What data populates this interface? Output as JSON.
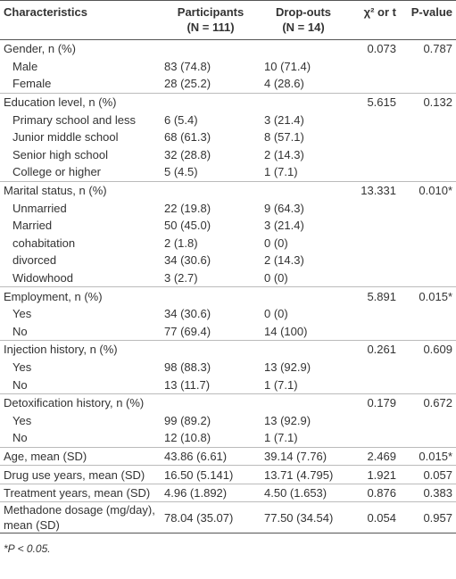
{
  "table": {
    "header": {
      "characteristics": "Characteristics",
      "participants": [
        "Participants",
        "(N = 111)"
      ],
      "dropouts": [
        "Drop-outs",
        "(N = 14)"
      ],
      "stat": "χ² or t",
      "p": "P-value"
    },
    "groups": [
      {
        "label": "Gender, n (%)",
        "stat": "0.073",
        "p": "0.787",
        "items": [
          {
            "label": "Male",
            "participants": "83 (74.8)",
            "dropouts": "10 (71.4)"
          },
          {
            "label": "Female",
            "participants": "28 (25.2)",
            "dropouts": "4 (28.6)"
          }
        ]
      },
      {
        "label": "Education level, n (%)",
        "stat": "5.615",
        "p": "0.132",
        "items": [
          {
            "label": "Primary school and less",
            "participants": "6 (5.4)",
            "dropouts": "3 (21.4)"
          },
          {
            "label": "Junior middle school",
            "participants": "68 (61.3)",
            "dropouts": "8 (57.1)"
          },
          {
            "label": "Senior high school",
            "participants": "32 (28.8)",
            "dropouts": "2 (14.3)"
          },
          {
            "label": "College or higher",
            "participants": "5 (4.5)",
            "dropouts": "1 (7.1)"
          }
        ]
      },
      {
        "label": "Marital status, n (%)",
        "stat": "13.331",
        "p": "0.010*",
        "items": [
          {
            "label": "Unmarried",
            "participants": "22 (19.8)",
            "dropouts": "9 (64.3)"
          },
          {
            "label": "Married",
            "participants": "50 (45.0)",
            "dropouts": "3 (21.4)"
          },
          {
            "label": "cohabitation",
            "participants": "2 (1.8)",
            "dropouts": "0 (0)"
          },
          {
            "label": "divorced",
            "participants": "34 (30.6)",
            "dropouts": "2 (14.3)"
          },
          {
            "label": "Widowhood",
            "participants": "3 (2.7)",
            "dropouts": "0 (0)"
          }
        ]
      },
      {
        "label": "Employment, n (%)",
        "stat": "5.891",
        "p": "0.015*",
        "items": [
          {
            "label": "Yes",
            "participants": "34 (30.6)",
            "dropouts": "0 (0)"
          },
          {
            "label": "No",
            "participants": "77 (69.4)",
            "dropouts": "14 (100)"
          }
        ]
      },
      {
        "label": "Injection history, n (%)",
        "stat": "0.261",
        "p": "0.609",
        "items": [
          {
            "label": "Yes",
            "participants": "98 (88.3)",
            "dropouts": "13 (92.9)"
          },
          {
            "label": "No",
            "participants": "13 (11.7)",
            "dropouts": "1 (7.1)"
          }
        ]
      },
      {
        "label": "Detoxification history, n (%)",
        "stat": "0.179",
        "p": "0.672",
        "items": [
          {
            "label": "Yes",
            "participants": "99 (89.2)",
            "dropouts": "13 (92.9)"
          },
          {
            "label": "No",
            "participants": "12 (10.8)",
            "dropouts": "1 (7.1)"
          }
        ]
      },
      {
        "label": "Age, mean (SD)",
        "participants": "43.86 (6.61)",
        "dropouts": "39.14 (7.76)",
        "stat": "2.469",
        "p": "0.015*"
      },
      {
        "label": "Drug use years, mean (SD)",
        "participants": "16.50 (5.141)",
        "dropouts": "13.71 (4.795)",
        "stat": "1.921",
        "p": "0.057"
      },
      {
        "label": "Treatment years, mean (SD)",
        "participants": "4.96 (1.892)",
        "dropouts": "4.50 (1.653)",
        "stat": "0.876",
        "p": "0.383"
      },
      {
        "label": "Methadone dosage (mg/day), mean (SD)",
        "participants": "78.04 (35.07)",
        "dropouts": "77.50 (34.54)",
        "stat": "0.054",
        "p": "0.957"
      }
    ],
    "footnote": "*P < 0.05."
  }
}
